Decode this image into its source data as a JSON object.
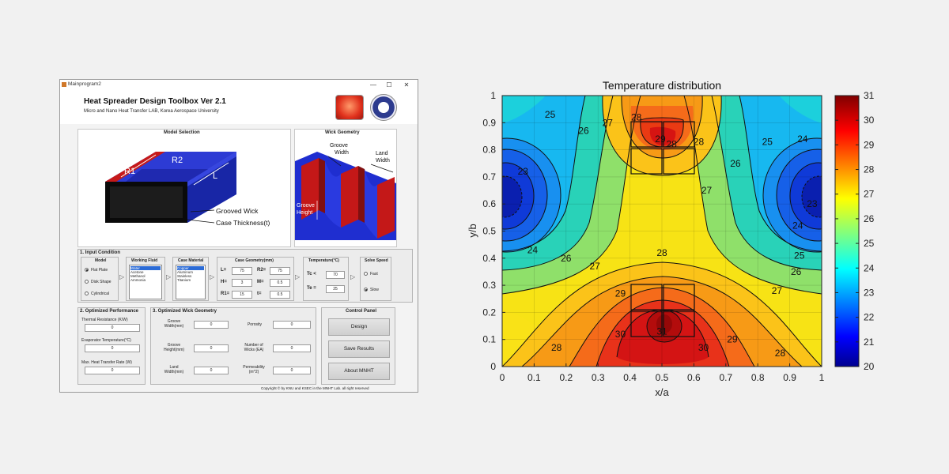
{
  "window": {
    "title": "Mainprogram2",
    "controls": {
      "minimize": "—",
      "maximize": "☐",
      "close": "✕"
    }
  },
  "header": {
    "title": "Heat Spreader Design Toolbox Ver 2.1",
    "subtitle": "Micro and Nano Heat Transfer LAB, Korea Aerospace University"
  },
  "model_selection": {
    "title": "Model Selection",
    "labels": {
      "r2": "R2",
      "r1": "R1",
      "l": "L",
      "grooved_wick": "Grooved Wick",
      "case_thickness": "Case Thickness(t)"
    }
  },
  "wick_geometry": {
    "title": "Wick Geometry",
    "labels": {
      "groove_width": "Groove\nWidth",
      "land_width": "Land\nWidth",
      "groove_height": "Groove\nHeight"
    }
  },
  "input_condition": {
    "title": "1. Input Condition",
    "model": {
      "title": "Model",
      "options": [
        "Flat Plate",
        "Disk Shape",
        "Cylindrical"
      ],
      "selected": 0
    },
    "working_fluid": {
      "title": "Working Fluid",
      "items": [
        "Water",
        "Acetone",
        "Methanol",
        "Ammonia"
      ],
      "selected": 0
    },
    "case_material": {
      "title": "Case Material",
      "items": [
        "Copper",
        "Aluminum",
        "Stainless",
        "Titanium"
      ],
      "selected": 0
    },
    "case_geometry": {
      "title": "Case Geometry(mm)",
      "fields": [
        {
          "label": "L=",
          "value": "75"
        },
        {
          "label": "R2=",
          "value": "75"
        },
        {
          "label": "H=",
          "value": "3"
        },
        {
          "label": "M=",
          "value": "0.5"
        },
        {
          "label": "R1=",
          "value": "15"
        },
        {
          "label": "t=",
          "value": "0.5"
        }
      ]
    },
    "temperature": {
      "title": "Temperature(°C)",
      "tc_label": "Tc <",
      "tc_value": "70",
      "te_label": "Te =",
      "te_value": "25"
    },
    "solve_speed": {
      "title": "Solve Speed",
      "options": [
        "Fast",
        "Slow"
      ],
      "selected": 1
    }
  },
  "optimized_performance": {
    "title": "2. Optimized Performance",
    "items": [
      {
        "label": "Thermal Resistance (K/W)",
        "value": "0"
      },
      {
        "label": "Evaporator Temperature(°C)",
        "value": "0"
      },
      {
        "label": "Max. Heat Transfer Rate (W)",
        "value": "0"
      }
    ]
  },
  "optimized_wick": {
    "title": "3. Optimized Wick Geometry",
    "items": [
      {
        "label": "Groove\nWidth(mm)",
        "value": "0"
      },
      {
        "label": "Porosity",
        "value": "0"
      },
      {
        "label": "Groove\nHeight(mm)",
        "value": "0"
      },
      {
        "label": "Number of\nWicks (EA)",
        "value": "0"
      },
      {
        "label": "Land\nWidth(mm)",
        "value": "0"
      },
      {
        "label": "Permeability\n(m^2)",
        "value": "0"
      }
    ]
  },
  "control_panel": {
    "title": "Control Panel",
    "buttons": [
      "Design",
      "Save Results",
      "About MNHT"
    ]
  },
  "footer": {
    "copyright": "Copyright © by KNU and KSEC in the MNHT Lab. all right reserved"
  },
  "colors": {
    "accent_blue": "#2b6bd6",
    "plate_red": "#d11a1a",
    "plate_blue": "#2230c8"
  },
  "chart_data": {
    "type": "heatmap",
    "subtype": "filled-contour",
    "title": "Temperature distribution",
    "xlabel": "x/a",
    "ylabel": "y/b",
    "xlim": [
      0,
      1
    ],
    "ylim": [
      0,
      1
    ],
    "x_ticks": [
      "0",
      "0.1",
      "0.2",
      "0.3",
      "0.4",
      "0.5",
      "0.6",
      "0.7",
      "0.8",
      "0.9",
      "1"
    ],
    "y_ticks": [
      "0",
      "0.1",
      "0.2",
      "0.3",
      "0.4",
      "0.5",
      "0.6",
      "0.7",
      "0.8",
      "0.9",
      "1"
    ],
    "colorbar": {
      "min": 20,
      "max": 31,
      "ticks": [
        "20",
        "21",
        "22",
        "23",
        "24",
        "25",
        "26",
        "27",
        "28",
        "29",
        "30",
        "31"
      ],
      "colormap": "jet"
    },
    "grid": true,
    "hot_spots": [
      {
        "x": 0.5,
        "y": 0.82,
        "peak": 29
      },
      {
        "x": 0.5,
        "y": 0.17,
        "peak": 31
      }
    ],
    "cold_spots": [
      {
        "x": 0.03,
        "y": 0.63,
        "min": 20
      },
      {
        "x": 0.97,
        "y": 0.63,
        "min": 20
      }
    ],
    "contour_labels": [
      {
        "x": 0.15,
        "y": 0.93,
        "text": "25"
      },
      {
        "x": 0.255,
        "y": 0.87,
        "text": "26"
      },
      {
        "x": 0.33,
        "y": 0.9,
        "text": "27"
      },
      {
        "x": 0.42,
        "y": 0.92,
        "text": "28"
      },
      {
        "x": 0.495,
        "y": 0.84,
        "text": "29"
      },
      {
        "x": 0.615,
        "y": 0.83,
        "text": "28"
      },
      {
        "x": 0.64,
        "y": 0.65,
        "text": "27"
      },
      {
        "x": 0.73,
        "y": 0.75,
        "text": "26"
      },
      {
        "x": 0.83,
        "y": 0.83,
        "text": "25"
      },
      {
        "x": 0.94,
        "y": 0.84,
        "text": "24"
      },
      {
        "x": 0.065,
        "y": 0.72,
        "text": "23"
      },
      {
        "x": 0.095,
        "y": 0.43,
        "text": "24"
      },
      {
        "x": 0.2,
        "y": 0.4,
        "text": "26"
      },
      {
        "x": 0.29,
        "y": 0.37,
        "text": "27"
      },
      {
        "x": 0.5,
        "y": 0.42,
        "text": "28"
      },
      {
        "x": 0.37,
        "y": 0.27,
        "text": "29"
      },
      {
        "x": 0.37,
        "y": 0.12,
        "text": "30"
      },
      {
        "x": 0.5,
        "y": 0.13,
        "text": "31"
      },
      {
        "x": 0.63,
        "y": 0.07,
        "text": "30"
      },
      {
        "x": 0.72,
        "y": 0.1,
        "text": "29"
      },
      {
        "x": 0.87,
        "y": 0.05,
        "text": "28"
      },
      {
        "x": 0.17,
        "y": 0.07,
        "text": "28"
      },
      {
        "x": 0.86,
        "y": 0.28,
        "text": "27"
      },
      {
        "x": 0.92,
        "y": 0.35,
        "text": "26"
      },
      {
        "x": 0.93,
        "y": 0.41,
        "text": "25"
      },
      {
        "x": 0.925,
        "y": 0.52,
        "text": "24"
      },
      {
        "x": 0.97,
        "y": 0.6,
        "text": "23"
      },
      {
        "x": 0.53,
        "y": 0.82,
        "text": "28"
      }
    ]
  }
}
